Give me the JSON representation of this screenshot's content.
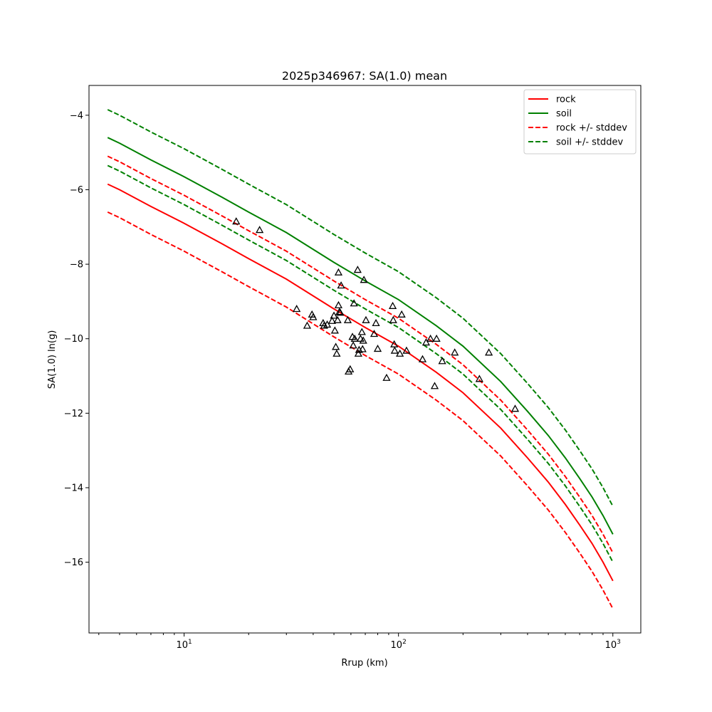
{
  "chart_data": {
    "type": "scatter",
    "title": "2025p346967: SA(1.0) mean",
    "xlabel": "Rrup (km)",
    "ylabel": "SA(1.0) ln(g)",
    "xscale": "log",
    "xlim": [
      3.6,
      1350
    ],
    "ylim": [
      -17.9,
      -3.2
    ],
    "x_ticks": [
      {
        "value": 10,
        "base": "10",
        "exp": "1"
      },
      {
        "value": 100,
        "base": "10",
        "exp": "2"
      },
      {
        "value": 1000,
        "base": "10",
        "exp": "3"
      }
    ],
    "y_ticks": [
      {
        "value": -16,
        "label": "−16"
      },
      {
        "value": -14,
        "label": "−14"
      },
      {
        "value": -12,
        "label": "−12"
      },
      {
        "value": -10,
        "label": "−10"
      },
      {
        "value": -8,
        "label": "−8"
      },
      {
        "value": -6,
        "label": "−6"
      },
      {
        "value": -4,
        "label": "−4"
      }
    ],
    "grid": false,
    "legend_position": "top-right",
    "lines": [
      {
        "name": "rock",
        "color": "#ff0000",
        "style": "solid",
        "points": [
          [
            4.4,
            -5.85
          ],
          [
            5,
            -6.0
          ],
          [
            7,
            -6.45
          ],
          [
            10,
            -6.9
          ],
          [
            15,
            -7.45
          ],
          [
            20,
            -7.85
          ],
          [
            30,
            -8.4
          ],
          [
            50,
            -9.2
          ],
          [
            70,
            -9.7
          ],
          [
            100,
            -10.2
          ],
          [
            150,
            -10.9
          ],
          [
            200,
            -11.45
          ],
          [
            300,
            -12.4
          ],
          [
            400,
            -13.2
          ],
          [
            500,
            -13.85
          ],
          [
            600,
            -14.45
          ],
          [
            700,
            -15.0
          ],
          [
            800,
            -15.5
          ],
          [
            900,
            -16.0
          ],
          [
            1000,
            -16.5
          ]
        ]
      },
      {
        "name": "soil",
        "color": "#008000",
        "style": "solid",
        "points": [
          [
            4.4,
            -4.6
          ],
          [
            5,
            -4.75
          ],
          [
            7,
            -5.2
          ],
          [
            10,
            -5.65
          ],
          [
            15,
            -6.2
          ],
          [
            20,
            -6.6
          ],
          [
            30,
            -7.15
          ],
          [
            50,
            -7.95
          ],
          [
            70,
            -8.45
          ],
          [
            100,
            -8.95
          ],
          [
            150,
            -9.65
          ],
          [
            200,
            -10.2
          ],
          [
            300,
            -11.15
          ],
          [
            400,
            -11.95
          ],
          [
            500,
            -12.6
          ],
          [
            600,
            -13.2
          ],
          [
            700,
            -13.75
          ],
          [
            800,
            -14.25
          ],
          [
            900,
            -14.75
          ],
          [
            1000,
            -15.25
          ]
        ]
      },
      {
        "name": "rock +/- stddev",
        "color": "#ff0000",
        "style": "dashed",
        "points": [
          [
            4.4,
            -5.1
          ],
          [
            5,
            -5.25
          ],
          [
            7,
            -5.7
          ],
          [
            10,
            -6.15
          ],
          [
            15,
            -6.7
          ],
          [
            20,
            -7.1
          ],
          [
            30,
            -7.65
          ],
          [
            50,
            -8.45
          ],
          [
            70,
            -8.95
          ],
          [
            100,
            -9.45
          ],
          [
            150,
            -10.15
          ],
          [
            200,
            -10.7
          ],
          [
            300,
            -11.65
          ],
          [
            400,
            -12.45
          ],
          [
            500,
            -13.1
          ],
          [
            600,
            -13.7
          ],
          [
            700,
            -14.25
          ],
          [
            800,
            -14.75
          ],
          [
            900,
            -15.25
          ],
          [
            1000,
            -15.75
          ]
        ]
      },
      {
        "name": "",
        "color": "#ff0000",
        "style": "dashed",
        "points": [
          [
            4.4,
            -6.6
          ],
          [
            5,
            -6.75
          ],
          [
            7,
            -7.2
          ],
          [
            10,
            -7.65
          ],
          [
            15,
            -8.2
          ],
          [
            20,
            -8.6
          ],
          [
            30,
            -9.15
          ],
          [
            50,
            -9.95
          ],
          [
            70,
            -10.45
          ],
          [
            100,
            -10.95
          ],
          [
            150,
            -11.65
          ],
          [
            200,
            -12.2
          ],
          [
            300,
            -13.15
          ],
          [
            400,
            -13.95
          ],
          [
            500,
            -14.6
          ],
          [
            600,
            -15.2
          ],
          [
            700,
            -15.75
          ],
          [
            800,
            -16.25
          ],
          [
            900,
            -16.75
          ],
          [
            1000,
            -17.25
          ]
        ]
      },
      {
        "name": "soil +/- stddev",
        "color": "#008000",
        "style": "dashed",
        "points": [
          [
            4.4,
            -3.85
          ],
          [
            5,
            -4.0
          ],
          [
            7,
            -4.45
          ],
          [
            10,
            -4.9
          ],
          [
            15,
            -5.45
          ],
          [
            20,
            -5.85
          ],
          [
            30,
            -6.4
          ],
          [
            50,
            -7.2
          ],
          [
            70,
            -7.7
          ],
          [
            100,
            -8.2
          ],
          [
            150,
            -8.9
          ],
          [
            200,
            -9.45
          ],
          [
            300,
            -10.4
          ],
          [
            400,
            -11.2
          ],
          [
            500,
            -11.85
          ],
          [
            600,
            -12.45
          ],
          [
            700,
            -13.0
          ],
          [
            800,
            -13.5
          ],
          [
            900,
            -14.0
          ],
          [
            1000,
            -14.5
          ]
        ]
      },
      {
        "name": "",
        "color": "#008000",
        "style": "dashed",
        "points": [
          [
            4.4,
            -5.35
          ],
          [
            5,
            -5.5
          ],
          [
            7,
            -5.95
          ],
          [
            10,
            -6.4
          ],
          [
            15,
            -6.95
          ],
          [
            20,
            -7.35
          ],
          [
            30,
            -7.9
          ],
          [
            50,
            -8.7
          ],
          [
            70,
            -9.2
          ],
          [
            100,
            -9.7
          ],
          [
            150,
            -10.4
          ],
          [
            200,
            -10.95
          ],
          [
            300,
            -11.9
          ],
          [
            400,
            -12.7
          ],
          [
            500,
            -13.35
          ],
          [
            600,
            -13.95
          ],
          [
            700,
            -14.5
          ],
          [
            800,
            -15.0
          ],
          [
            900,
            -15.5
          ],
          [
            1000,
            -16.0
          ]
        ]
      }
    ],
    "observations": {
      "marker": "triangle",
      "color": "#000000",
      "points": [
        [
          17.5,
          -6.85
        ],
        [
          22.5,
          -7.08
        ],
        [
          33.5,
          -9.2
        ],
        [
          37.5,
          -9.65
        ],
        [
          39.5,
          -9.35
        ],
        [
          40.0,
          -9.42
        ],
        [
          44.5,
          -9.58
        ],
        [
          45.0,
          -9.65
        ],
        [
          46.5,
          -9.62
        ],
        [
          49.0,
          -9.52
        ],
        [
          50.0,
          -9.38
        ],
        [
          50.5,
          -9.78
        ],
        [
          51.0,
          -10.22
        ],
        [
          51.5,
          -10.4
        ],
        [
          52.0,
          -9.5
        ],
        [
          52.5,
          -9.1
        ],
        [
          53.0,
          -9.28
        ],
        [
          53.5,
          -9.3
        ],
        [
          54.0,
          -8.57
        ],
        [
          52.5,
          -8.22
        ],
        [
          58.0,
          -9.5
        ],
        [
          58.5,
          -10.88
        ],
        [
          59.5,
          -10.82
        ],
        [
          61.0,
          -9.95
        ],
        [
          61.5,
          -10.18
        ],
        [
          62.0,
          -9.05
        ],
        [
          62.5,
          -10.0
        ],
        [
          64.5,
          -8.15
        ],
        [
          65.0,
          -10.4
        ],
        [
          65.5,
          -10.3
        ],
        [
          66.5,
          -10.0
        ],
        [
          67.5,
          -9.82
        ],
        [
          68.0,
          -10.28
        ],
        [
          68.5,
          -10.05
        ],
        [
          69.0,
          -8.42
        ],
        [
          70.5,
          -9.5
        ],
        [
          77.0,
          -9.87
        ],
        [
          78.5,
          -9.58
        ],
        [
          80.0,
          -10.27
        ],
        [
          88.0,
          -11.05
        ],
        [
          94.0,
          -9.12
        ],
        [
          94.5,
          -9.5
        ],
        [
          95.5,
          -10.15
        ],
        [
          96.0,
          -10.32
        ],
        [
          101.5,
          -10.4
        ],
        [
          103.5,
          -9.35
        ],
        [
          109.0,
          -10.32
        ],
        [
          129.5,
          -10.55
        ],
        [
          134.5,
          -10.1
        ],
        [
          141.0,
          -10.0
        ],
        [
          147.5,
          -11.27
        ],
        [
          150.5,
          -10.0
        ],
        [
          160.0,
          -10.6
        ],
        [
          183.0,
          -10.37
        ],
        [
          238.5,
          -11.08
        ],
        [
          264.0,
          -10.37
        ],
        [
          350.0,
          -11.88
        ]
      ]
    }
  }
}
